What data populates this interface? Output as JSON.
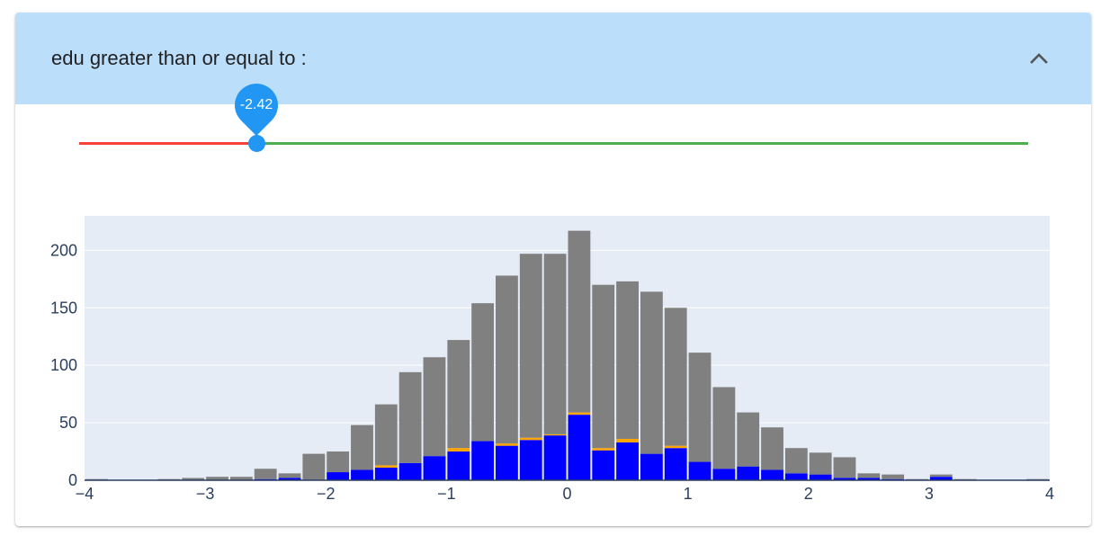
{
  "header": {
    "title": "edu greater than or equal to :",
    "collapse_icon": "chevron-up-icon"
  },
  "slider": {
    "value_label": "-2.42",
    "value": -2.42,
    "colors": {
      "below": "#f44336",
      "above": "#4caf50",
      "thumb": "#2196f3"
    }
  },
  "chart_data": {
    "type": "bar",
    "barmode": "stack",
    "x_bin_centers": [
      -3.9,
      -3.7,
      -3.5,
      -3.3,
      -3.1,
      -2.9,
      -2.7,
      -2.5,
      -2.3,
      -2.1,
      -1.9,
      -1.7,
      -1.5,
      -1.3,
      -1.1,
      -0.9,
      -0.7,
      -0.5,
      -0.3,
      -0.1,
      0.1,
      0.3,
      0.5,
      0.7,
      0.9,
      1.1,
      1.3,
      1.5,
      1.7,
      1.9,
      2.1,
      2.3,
      2.5,
      2.7,
      2.9,
      3.1,
      3.3,
      3.5,
      3.7,
      3.9
    ],
    "series": [
      {
        "color": "#0000ff",
        "values": [
          0,
          0,
          0,
          0,
          0,
          0,
          0,
          1,
          2,
          0,
          7,
          9,
          11,
          15,
          21,
          25,
          34,
          30,
          35,
          39,
          57,
          26,
          33,
          23,
          28,
          16,
          10,
          12,
          9,
          6,
          5,
          2,
          2,
          1,
          0,
          3,
          0,
          0,
          0,
          0
        ]
      },
      {
        "color": "#ffa500",
        "values": [
          0,
          0,
          0,
          0,
          0,
          0,
          0,
          0,
          0,
          0,
          0,
          0,
          2,
          0,
          0,
          3,
          0,
          2,
          2,
          1,
          2,
          2,
          3,
          0,
          2,
          0,
          0,
          0,
          0,
          0,
          0,
          0,
          0,
          0,
          0,
          0,
          0,
          0,
          0,
          0
        ]
      },
      {
        "color": "#808080",
        "values": [
          1,
          0,
          0,
          1,
          2,
          3,
          3,
          9,
          4,
          23,
          18,
          39,
          53,
          79,
          86,
          94,
          120,
          146,
          160,
          157,
          158,
          142,
          137,
          141,
          120,
          95,
          71,
          47,
          37,
          22,
          19,
          18,
          4,
          4,
          1,
          2,
          1,
          0,
          0,
          1
        ]
      }
    ],
    "xlim": [
      -4,
      4
    ],
    "ylim": [
      0,
      230
    ],
    "x_ticks": [
      "−4",
      "−3",
      "−2",
      "−1",
      "0",
      "1",
      "2",
      "3",
      "4"
    ],
    "y_ticks": [
      "0",
      "50",
      "100",
      "150",
      "200"
    ],
    "grid": true,
    "plot_bgcolor": "#e5ecf6"
  }
}
